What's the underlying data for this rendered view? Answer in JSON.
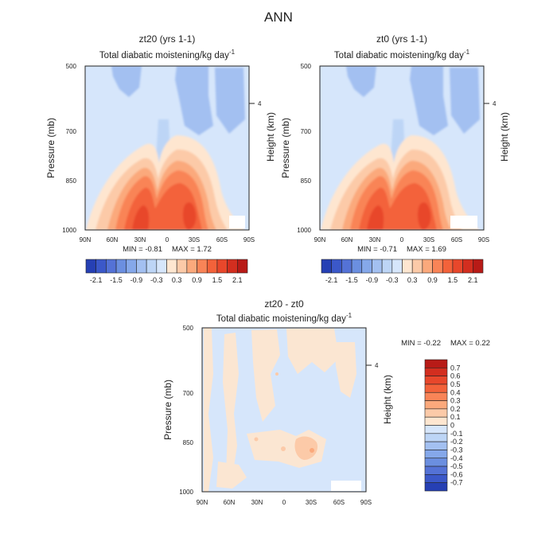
{
  "figure": {
    "title": "ANN",
    "colors": {
      "warm_levels": [
        "#fee6d0",
        "#fccaa8",
        "#fba97c",
        "#f98457",
        "#f3623a",
        "#e8472b",
        "#d32e1f",
        "#b81b17",
        "#8f0e0e"
      ],
      "cool_levels": [
        "#d6e6fb",
        "#bdd5f6",
        "#a3c0f1",
        "#85a8ea",
        "#6b8fe0",
        "#5472d6",
        "#3b58c9",
        "#2640b4",
        "#10219a",
        "#000e7e"
      ],
      "axis": "#222222"
    }
  },
  "chart_data": [
    {
      "type": "heatmap",
      "title": "zt20 (yrs 1-1)",
      "subtitle": "Total diabatic moistening/kg day",
      "subtitle_exponent": "-1",
      "xlabel": "",
      "ylabel": "Pressure (mb)",
      "ylabel_right": "Height (km)",
      "x_ticks": [
        "90N",
        "60N",
        "30N",
        "0",
        "30S",
        "60S",
        "90S"
      ],
      "y_ticks": [
        "500",
        "700",
        "850",
        "1000"
      ],
      "right_ticks": [
        "4"
      ],
      "stats": {
        "min_label": "MIN = ",
        "min": "-0.81",
        "max_label": "MAX = ",
        "max": "1.72"
      },
      "colorbar": {
        "orientation": "horizontal",
        "levels": [
          -2.1,
          -1.8,
          -1.5,
          -1.2,
          -0.9,
          -0.6,
          -0.3,
          0,
          0.3,
          0.6,
          0.9,
          1.2,
          1.5,
          1.8,
          2.1
        ],
        "tick_labels": [
          "-2.1",
          "-1.5",
          "-0.9",
          "-0.3",
          "0.3",
          "0.9",
          "1.5",
          "2.1"
        ]
      },
      "field_blobs": [
        {
          "lat": -35,
          "p": 930,
          "value": 1.72
        },
        {
          "lat": 35,
          "p": 930,
          "value": 1.6
        },
        {
          "lat": 5,
          "p": 810,
          "value": -0.81
        },
        {
          "lat": -45,
          "p": 580,
          "value": -0.4
        }
      ]
    },
    {
      "type": "heatmap",
      "title": "zt0 (yrs 1-1)",
      "subtitle": "Total diabatic moistening/kg day",
      "subtitle_exponent": "-1",
      "xlabel": "",
      "ylabel": "Pressure (mb)",
      "ylabel_right": "Height (km)",
      "x_ticks": [
        "90N",
        "60N",
        "30N",
        "0",
        "30S",
        "60S",
        "90S"
      ],
      "y_ticks": [
        "500",
        "700",
        "850",
        "1000"
      ],
      "right_ticks": [
        "4"
      ],
      "stats": {
        "min_label": "MIN = ",
        "min": "-0.71",
        "max_label": "MAX = ",
        "max": "1.69"
      },
      "colorbar": {
        "orientation": "horizontal",
        "levels": [
          -2.1,
          -1.8,
          -1.5,
          -1.2,
          -0.9,
          -0.6,
          -0.3,
          0,
          0.3,
          0.6,
          0.9,
          1.2,
          1.5,
          1.8,
          2.1
        ],
        "tick_labels": [
          "-2.1",
          "-1.5",
          "-0.9",
          "-0.3",
          "0.3",
          "0.9",
          "1.5",
          "2.1"
        ]
      },
      "field_blobs": [
        {
          "lat": -35,
          "p": 930,
          "value": 1.69
        },
        {
          "lat": 35,
          "p": 930,
          "value": 1.6
        },
        {
          "lat": 5,
          "p": 810,
          "value": -0.71
        },
        {
          "lat": -45,
          "p": 580,
          "value": -0.4
        }
      ]
    },
    {
      "type": "heatmap",
      "title": "zt20 - zt0",
      "subtitle": "Total diabatic moistening/kg day",
      "subtitle_exponent": "-1",
      "xlabel": "",
      "ylabel": "Pressure (mb)",
      "ylabel_right": "Height (km)",
      "x_ticks": [
        "90N",
        "60N",
        "30N",
        "0",
        "30S",
        "60S",
        "90S"
      ],
      "y_ticks": [
        "500",
        "700",
        "850",
        "1000"
      ],
      "right_ticks": [
        "4"
      ],
      "stats": {
        "min_label": "MIN = ",
        "min": "-0.22",
        "max_label": "MAX = ",
        "max": "0.22"
      },
      "colorbar": {
        "orientation": "vertical",
        "levels": [
          -0.7,
          -0.6,
          -0.5,
          -0.4,
          -0.3,
          -0.2,
          -0.1,
          0,
          0.1,
          0.2,
          0.3,
          0.4,
          0.5,
          0.6,
          0.7
        ],
        "tick_labels": [
          "0.7",
          "0.6",
          "0.5",
          "0.4",
          "0.3",
          "0.2",
          "0.1",
          "0",
          "-0.1",
          "-0.2",
          "-0.3",
          "-0.4",
          "-0.5",
          "-0.6",
          "-0.7"
        ]
      }
    }
  ]
}
